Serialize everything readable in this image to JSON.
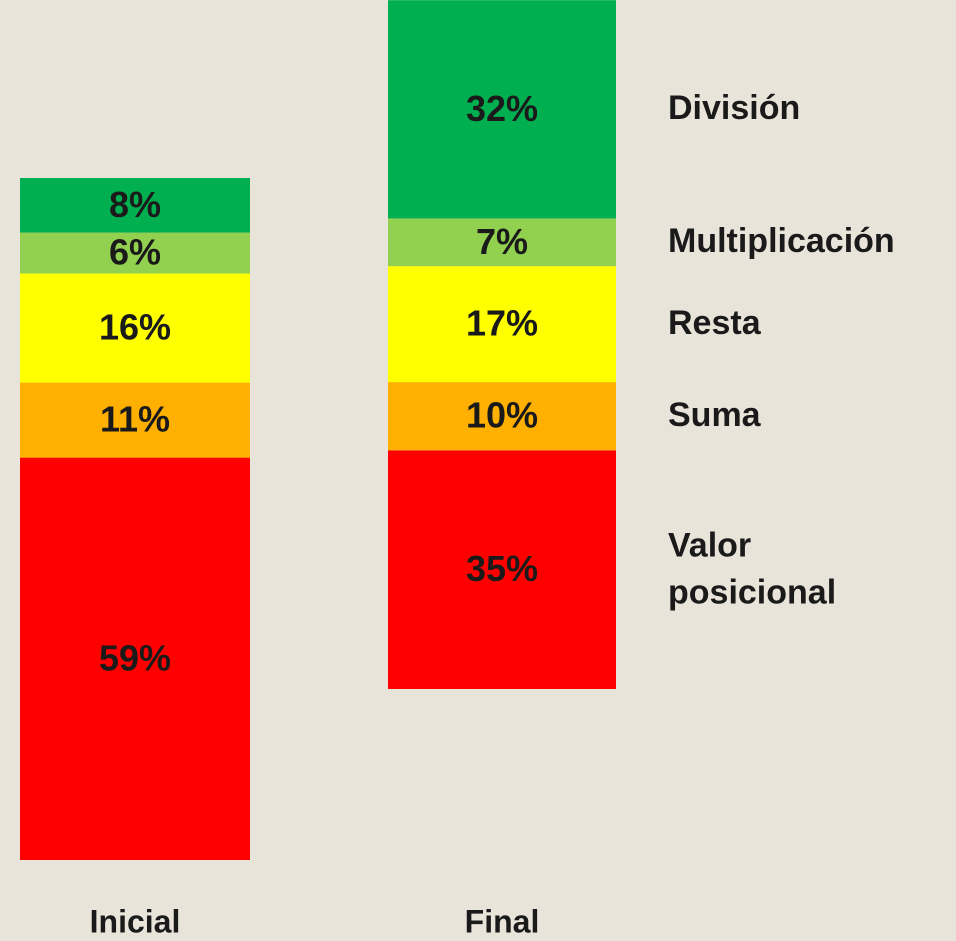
{
  "chart_data": {
    "type": "stacked_bar",
    "categories": [
      "Inicial",
      "Final"
    ],
    "series": [
      {
        "name": "Valor posicional",
        "color": "#ff0000",
        "values": [
          59,
          35
        ],
        "value_labels": [
          "59%",
          "35%"
        ]
      },
      {
        "name": "Suma",
        "color": "#ffb000",
        "values": [
          11,
          10
        ],
        "value_labels": [
          "11%",
          "10%"
        ]
      },
      {
        "name": "Resta",
        "color": "#ffff00",
        "values": [
          16,
          17
        ],
        "value_labels": [
          "16%",
          "17%"
        ]
      },
      {
        "name": "Multiplicación",
        "color": "#92d050",
        "values": [
          6,
          7
        ],
        "value_labels": [
          "6%",
          "7%"
        ]
      },
      {
        "name": "División",
        "color": "#00b050",
        "values": [
          8,
          32
        ],
        "value_labels": [
          "8%",
          "32%"
        ]
      }
    ]
  }
}
